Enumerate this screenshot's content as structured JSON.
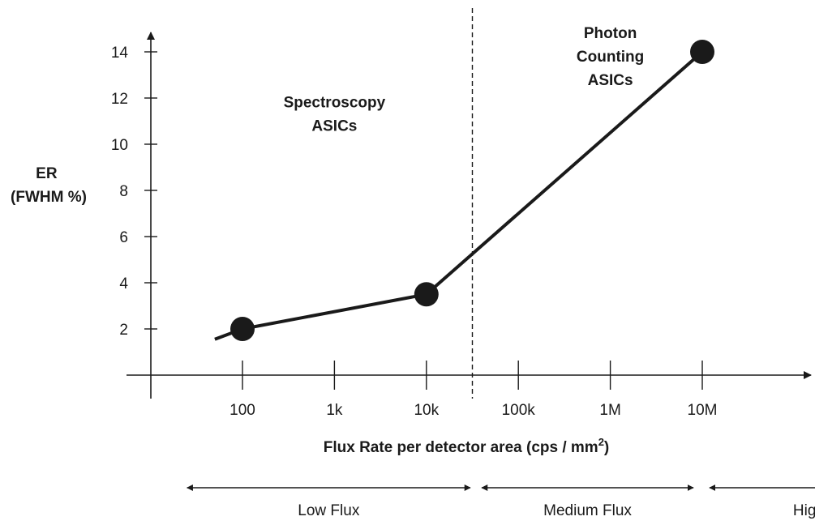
{
  "chart_data": {
    "type": "line",
    "xscale": "log",
    "x_ticks": [
      {
        "value": 100,
        "label": "100"
      },
      {
        "value": 1000,
        "label": "1k"
      },
      {
        "value": 10000,
        "label": "10k"
      },
      {
        "value": 100000,
        "label": "100k"
      },
      {
        "value": 1000000,
        "label": "1M"
      },
      {
        "value": 10000000,
        "label": "10M"
      }
    ],
    "y_ticks": [
      2,
      4,
      6,
      8,
      10,
      12,
      14
    ],
    "ylim": [
      0,
      14
    ],
    "xlabel": "Flux Rate per detector area (cps / mm",
    "xlabel_sup": "2",
    "xlabel_close": ")",
    "ylabel_lines": [
      "ER",
      "(FWHM %)"
    ],
    "grid": false,
    "series": [
      {
        "points": [
          {
            "x": 50,
            "y": 1.55,
            "marker": false
          },
          {
            "x": 100,
            "y": 2.0,
            "marker": true
          },
          {
            "x": 10000,
            "y": 3.5,
            "marker": true
          },
          {
            "x": 10000000,
            "y": 14.0,
            "marker": true
          }
        ]
      }
    ],
    "divider": {
      "x": 31623,
      "style": "dashed"
    },
    "annotations": [
      {
        "lines": [
          "Spectroscopy",
          "ASICs"
        ],
        "x": 1000,
        "y": 11.6
      },
      {
        "lines": [
          "Photon",
          "Counting",
          "ASICs"
        ],
        "x": 1000000,
        "y": 14.6
      }
    ],
    "flux_ranges": [
      {
        "label": "Low Flux",
        "from": 25,
        "to": 30000
      },
      {
        "label": "Medium Flux",
        "from": 40000,
        "to": 8000000
      },
      {
        "label": "High Flux",
        "from": 12000000,
        "to": 4000000000
      }
    ]
  }
}
